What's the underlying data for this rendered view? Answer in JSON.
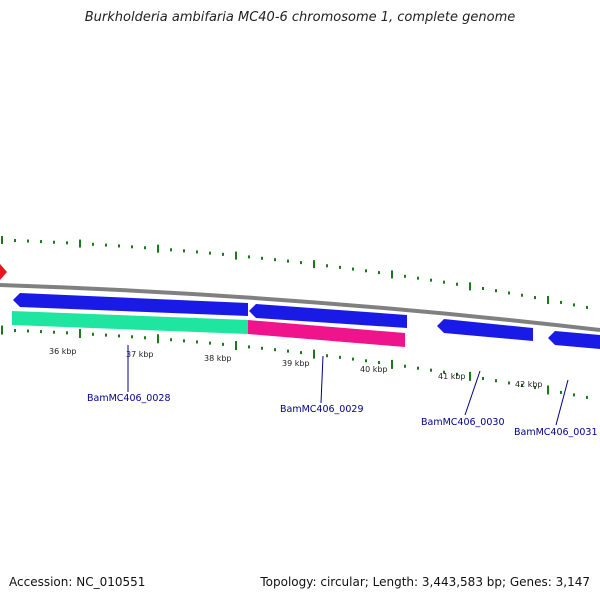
{
  "title": "Burkholderia ambifaria MC40-6 chromosome 1, complete genome",
  "footer": {
    "accession": "Accession: NC_010551",
    "summary": "Topology: circular; Length: 3,443,583 bp; Genes: 3,147"
  },
  "scale_labels": [
    "36 kbp",
    "37 kbp",
    "38 kbp",
    "39 kbp",
    "40 kbp",
    "41 kbp",
    "42 kbp"
  ],
  "gene_labels": [
    "BamMC406_0028",
    "BamMC406_0029",
    "BamMC406_0030",
    "BamMC406_0031"
  ],
  "colors": {
    "backbone": "#808080",
    "cds": "#1a1ae6",
    "feature_green": "#1ee6a0",
    "feature_pink": "#f0148c",
    "tick": "#1a7a1a",
    "marker": "#e6141e",
    "label": "#00008b"
  }
}
